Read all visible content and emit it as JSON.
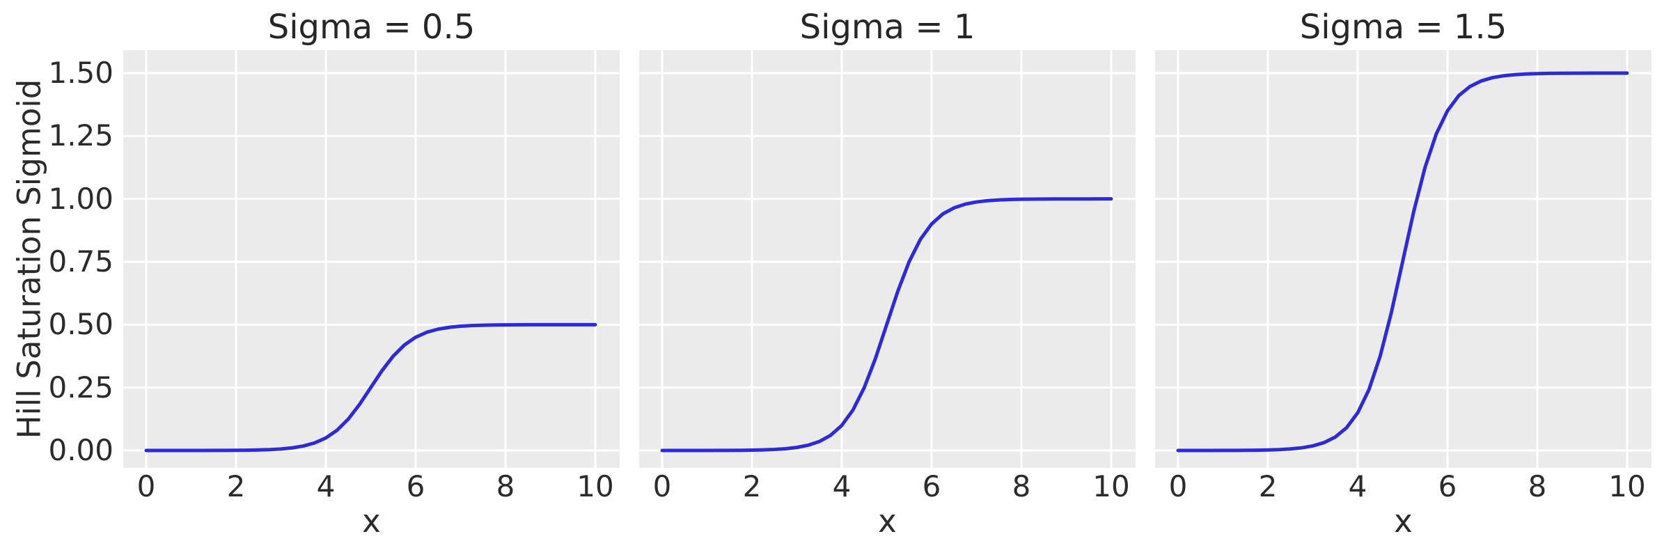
{
  "chart_data": {
    "type": "line",
    "layout": "1x3 subplots, shared y axis",
    "grid": true,
    "legend": "none",
    "style_colors": {
      "figure_background": "#ffffff",
      "axes_background": "#ebebeb",
      "grid_color": "#ffffff",
      "line_color": "#2d2ad6",
      "text_color": "#2b2b2b"
    },
    "xlabel": "x",
    "ylabel": "Hill Saturation Sigmoid",
    "xlim": [
      -0.51,
      10.54
    ],
    "ylim": [
      -0.07,
      1.59
    ],
    "xticks": [
      0,
      2,
      4,
      6,
      8,
      10
    ],
    "yticks": [
      {
        "value": 0.0,
        "label": "0.00"
      },
      {
        "value": 0.25,
        "label": "0.25"
      },
      {
        "value": 0.5,
        "label": "0.50"
      },
      {
        "value": 0.75,
        "label": "0.75"
      },
      {
        "value": 1.0,
        "label": "1.00"
      },
      {
        "value": 1.25,
        "label": "1.25"
      },
      {
        "value": 1.5,
        "label": "1.50"
      }
    ],
    "x": [
      0,
      0.25,
      0.5,
      0.75,
      1,
      1.25,
      1.5,
      1.75,
      2,
      2.25,
      2.5,
      2.75,
      3,
      3.25,
      3.5,
      3.75,
      4,
      4.25,
      4.5,
      4.75,
      5,
      5.25,
      5.5,
      5.75,
      6,
      6.25,
      6.5,
      6.75,
      7,
      7.25,
      7.5,
      7.75,
      8,
      8.25,
      8.5,
      8.75,
      9,
      9.25,
      9.5,
      9.75,
      10
    ],
    "panels": [
      {
        "title": "Sigma = 0.5",
        "sigma": 0.5,
        "saturation": 0.5,
        "y": [
          1e-05,
          2e-05,
          3e-05,
          4e-05,
          8e-05,
          0.00013,
          0.00022,
          0.00039,
          0.00068,
          0.00118,
          0.00204,
          0.00352,
          0.00607,
          0.01042,
          0.01779,
          0.03004,
          0.04988,
          0.08056,
          0.12487,
          0.18293,
          0.25,
          0.31707,
          0.37513,
          0.41944,
          0.45012,
          0.47014,
          0.48221,
          0.48957,
          0.49393,
          0.49649,
          0.49797,
          0.49882,
          0.49932,
          0.4996,
          0.49977,
          0.49987,
          0.49992,
          0.49996,
          0.49997,
          0.49998,
          0.49999
        ],
        "saturation_label": "0.50"
      },
      {
        "title": "Sigma = 1",
        "sigma": 1.0,
        "saturation": 1.0,
        "y": [
          2e-05,
          3e-05,
          5e-05,
          9e-05,
          0.00015,
          0.00026,
          0.00045,
          0.00079,
          0.00136,
          0.00236,
          0.00407,
          0.00704,
          0.01213,
          0.02084,
          0.03557,
          0.06008,
          0.09975,
          0.16111,
          0.24974,
          0.36586,
          0.5,
          0.63414,
          0.75026,
          0.83889,
          0.90025,
          0.94028,
          0.96443,
          0.97916,
          0.98787,
          0.99298,
          0.99593,
          0.99764,
          0.99864,
          0.99921,
          0.99955,
          0.99974,
          0.99985,
          0.99991,
          0.99995,
          0.99997,
          0.99998
        ],
        "saturation_label": "1.00"
      },
      {
        "title": "Sigma = 1.5",
        "sigma": 1.5,
        "saturation": 1.5,
        "y": [
          2e-05,
          5e-05,
          7e-05,
          0.00013,
          0.00022,
          0.00039,
          0.00067,
          0.00118,
          0.00205,
          0.00353,
          0.00611,
          0.01055,
          0.01819,
          0.03126,
          0.05336,
          0.09012,
          0.14963,
          0.24167,
          0.37461,
          0.54879,
          0.75,
          0.95121,
          1.12539,
          1.25833,
          1.35037,
          1.41042,
          1.44664,
          1.46874,
          1.4818,
          1.48947,
          1.4939,
          1.49645,
          1.49797,
          1.49881,
          1.49932,
          1.49961,
          1.49977,
          1.49986,
          1.49992,
          1.49995,
          1.49998
        ],
        "saturation_label": "1.50"
      }
    ]
  }
}
